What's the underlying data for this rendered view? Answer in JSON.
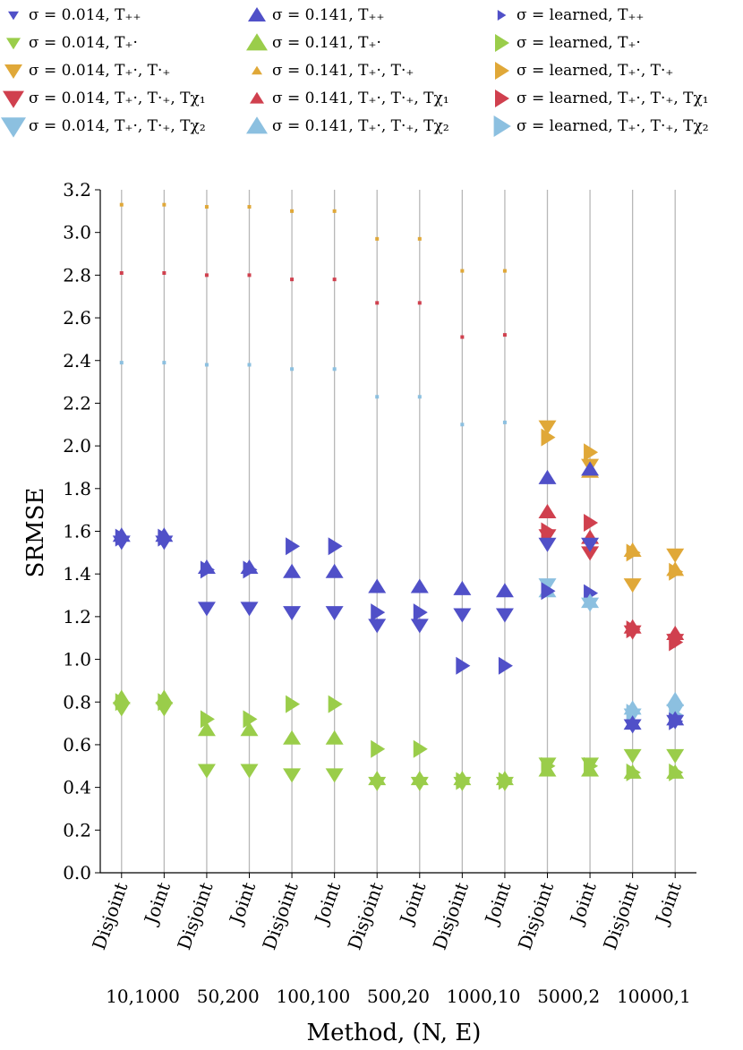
{
  "legend": [
    {
      "label": "σ = 0.014, T₊₊",
      "color": "#5050c8",
      "shape": "down",
      "size": "xs"
    },
    {
      "label": "σ = 0.014, T₊·",
      "color": "#9acd4a",
      "shape": "down",
      "size": "s"
    },
    {
      "label": "σ = 0.014, T₊·, T·₊",
      "color": "#e0a838",
      "shape": "down",
      "size": "m"
    },
    {
      "label": "σ = 0.014, T₊·, T·₊, Tχ₁",
      "color": "#d0404e",
      "shape": "down",
      "size": "l"
    },
    {
      "label": "σ = 0.014, T₊·, T·₊, Tχ₂",
      "color": "#8cc0e0",
      "shape": "down",
      "size": "xl"
    },
    {
      "label": "σ = 0.141, T₊₊",
      "color": "#5050c8",
      "shape": "up",
      "size": "m"
    },
    {
      "label": "σ = 0.141, T₊·",
      "color": "#9acd4a",
      "shape": "up",
      "size": "l"
    },
    {
      "label": "σ = 0.141, T₊·, T·₊",
      "color": "#e0a838",
      "shape": "up",
      "size": "xs"
    },
    {
      "label": "σ = 0.141, T₊·, T·₊, Tχ₁",
      "color": "#d0404e",
      "shape": "up",
      "size": "s"
    },
    {
      "label": "σ = 0.141, T₊·, T·₊, Tχ₂",
      "color": "#8cc0e0",
      "shape": "up",
      "size": "l"
    },
    {
      "label": "σ = learned, T₊₊",
      "color": "#5050c8",
      "shape": "right",
      "size": "xs"
    },
    {
      "label": "σ = learned, T₊·",
      "color": "#9acd4a",
      "shape": "right",
      "size": "m"
    },
    {
      "label": "σ = learned, T₊·, T·₊",
      "color": "#e0a838",
      "shape": "right",
      "size": "m"
    },
    {
      "label": "σ = learned, T₊·, T·₊, Tχ₁",
      "color": "#d0404e",
      "shape": "right",
      "size": "m"
    },
    {
      "label": "σ = learned, T₊·, T·₊, Tχ₂",
      "color": "#8cc0e0",
      "shape": "right",
      "size": "l"
    }
  ],
  "chart_data": {
    "type": "scatter",
    "ylabel": "SRMSE",
    "xlabel": "Method, (N, E)",
    "ylim": [
      0.0,
      3.2
    ],
    "yticks": [
      "0.0",
      "0.2",
      "0.4",
      "0.6",
      "0.8",
      "1.0",
      "1.2",
      "1.4",
      "1.6",
      "1.8",
      "2.0",
      "2.2",
      "2.4",
      "2.6",
      "2.8",
      "3.0",
      "3.2"
    ],
    "categories": [
      "Disjoint",
      "Joint",
      "Disjoint",
      "Joint",
      "Disjoint",
      "Joint",
      "Disjoint",
      "Joint",
      "Disjoint",
      "Joint",
      "Disjoint",
      "Joint",
      "Disjoint",
      "Joint"
    ],
    "groups": [
      "10,1000",
      "50,200",
      "100,100",
      "500,20",
      "1000,10",
      "5000,2",
      "10000,1"
    ],
    "colors": {
      "blue": "#5050c8",
      "green": "#9acd4a",
      "orange": "#e0a838",
      "red": "#d0404e",
      "lightblue": "#8cc0e0"
    },
    "points": [
      {
        "i": 0,
        "y": 3.13,
        "c": "orange",
        "shape": "dot"
      },
      {
        "i": 0,
        "y": 2.81,
        "c": "red",
        "shape": "dot"
      },
      {
        "i": 0,
        "y": 2.39,
        "c": "lightblue",
        "shape": "dot"
      },
      {
        "i": 0,
        "y": 1.55,
        "c": "blue",
        "shape": "down"
      },
      {
        "i": 0,
        "y": 1.58,
        "c": "blue",
        "shape": "up"
      },
      {
        "i": 0,
        "y": 1.57,
        "c": "blue",
        "shape": "right"
      },
      {
        "i": 0,
        "y": 0.77,
        "c": "green",
        "shape": "down"
      },
      {
        "i": 0,
        "y": 0.82,
        "c": "green",
        "shape": "up"
      },
      {
        "i": 0,
        "y": 0.8,
        "c": "green",
        "shape": "right"
      },
      {
        "i": 1,
        "y": 3.13,
        "c": "orange",
        "shape": "dot"
      },
      {
        "i": 1,
        "y": 2.81,
        "c": "red",
        "shape": "dot"
      },
      {
        "i": 1,
        "y": 2.39,
        "c": "lightblue",
        "shape": "dot"
      },
      {
        "i": 1,
        "y": 1.55,
        "c": "blue",
        "shape": "down"
      },
      {
        "i": 1,
        "y": 1.58,
        "c": "blue",
        "shape": "up"
      },
      {
        "i": 1,
        "y": 1.57,
        "c": "blue",
        "shape": "right"
      },
      {
        "i": 1,
        "y": 0.77,
        "c": "green",
        "shape": "down"
      },
      {
        "i": 1,
        "y": 0.82,
        "c": "green",
        "shape": "up"
      },
      {
        "i": 1,
        "y": 0.8,
        "c": "green",
        "shape": "right"
      },
      {
        "i": 2,
        "y": 3.12,
        "c": "orange",
        "shape": "dot"
      },
      {
        "i": 2,
        "y": 2.8,
        "c": "red",
        "shape": "dot"
      },
      {
        "i": 2,
        "y": 2.38,
        "c": "lightblue",
        "shape": "dot"
      },
      {
        "i": 2,
        "y": 1.24,
        "c": "blue",
        "shape": "down"
      },
      {
        "i": 2,
        "y": 1.43,
        "c": "blue",
        "shape": "up"
      },
      {
        "i": 2,
        "y": 1.42,
        "c": "blue",
        "shape": "right"
      },
      {
        "i": 2,
        "y": 0.48,
        "c": "green",
        "shape": "down"
      },
      {
        "i": 2,
        "y": 0.67,
        "c": "green",
        "shape": "up"
      },
      {
        "i": 2,
        "y": 0.72,
        "c": "green",
        "shape": "right"
      },
      {
        "i": 3,
        "y": 3.12,
        "c": "orange",
        "shape": "dot"
      },
      {
        "i": 3,
        "y": 2.8,
        "c": "red",
        "shape": "dot"
      },
      {
        "i": 3,
        "y": 2.38,
        "c": "lightblue",
        "shape": "dot"
      },
      {
        "i": 3,
        "y": 1.24,
        "c": "blue",
        "shape": "down"
      },
      {
        "i": 3,
        "y": 1.43,
        "c": "blue",
        "shape": "up"
      },
      {
        "i": 3,
        "y": 1.42,
        "c": "blue",
        "shape": "right"
      },
      {
        "i": 3,
        "y": 0.48,
        "c": "green",
        "shape": "down"
      },
      {
        "i": 3,
        "y": 0.67,
        "c": "green",
        "shape": "up"
      },
      {
        "i": 3,
        "y": 0.72,
        "c": "green",
        "shape": "right"
      },
      {
        "i": 4,
        "y": 3.1,
        "c": "orange",
        "shape": "dot"
      },
      {
        "i": 4,
        "y": 2.78,
        "c": "red",
        "shape": "dot"
      },
      {
        "i": 4,
        "y": 2.36,
        "c": "lightblue",
        "shape": "dot"
      },
      {
        "i": 4,
        "y": 1.22,
        "c": "blue",
        "shape": "down"
      },
      {
        "i": 4,
        "y": 1.41,
        "c": "blue",
        "shape": "up"
      },
      {
        "i": 4,
        "y": 1.53,
        "c": "blue",
        "shape": "right"
      },
      {
        "i": 4,
        "y": 0.46,
        "c": "green",
        "shape": "down"
      },
      {
        "i": 4,
        "y": 0.63,
        "c": "green",
        "shape": "up"
      },
      {
        "i": 4,
        "y": 0.79,
        "c": "green",
        "shape": "right"
      },
      {
        "i": 5,
        "y": 3.1,
        "c": "orange",
        "shape": "dot"
      },
      {
        "i": 5,
        "y": 2.78,
        "c": "red",
        "shape": "dot"
      },
      {
        "i": 5,
        "y": 2.36,
        "c": "lightblue",
        "shape": "dot"
      },
      {
        "i": 5,
        "y": 1.22,
        "c": "blue",
        "shape": "down"
      },
      {
        "i": 5,
        "y": 1.41,
        "c": "blue",
        "shape": "up"
      },
      {
        "i": 5,
        "y": 1.53,
        "c": "blue",
        "shape": "right"
      },
      {
        "i": 5,
        "y": 0.46,
        "c": "green",
        "shape": "down"
      },
      {
        "i": 5,
        "y": 0.63,
        "c": "green",
        "shape": "up"
      },
      {
        "i": 5,
        "y": 0.79,
        "c": "green",
        "shape": "right"
      },
      {
        "i": 6,
        "y": 2.97,
        "c": "orange",
        "shape": "dot"
      },
      {
        "i": 6,
        "y": 2.67,
        "c": "red",
        "shape": "dot"
      },
      {
        "i": 6,
        "y": 2.23,
        "c": "lightblue",
        "shape": "dot"
      },
      {
        "i": 6,
        "y": 1.16,
        "c": "blue",
        "shape": "down"
      },
      {
        "i": 6,
        "y": 1.34,
        "c": "blue",
        "shape": "up"
      },
      {
        "i": 6,
        "y": 1.22,
        "c": "blue",
        "shape": "right"
      },
      {
        "i": 6,
        "y": 0.42,
        "c": "green",
        "shape": "down"
      },
      {
        "i": 6,
        "y": 0.44,
        "c": "green",
        "shape": "up"
      },
      {
        "i": 6,
        "y": 0.58,
        "c": "green",
        "shape": "right"
      },
      {
        "i": 7,
        "y": 2.97,
        "c": "orange",
        "shape": "dot"
      },
      {
        "i": 7,
        "y": 2.67,
        "c": "red",
        "shape": "dot"
      },
      {
        "i": 7,
        "y": 2.23,
        "c": "lightblue",
        "shape": "dot"
      },
      {
        "i": 7,
        "y": 1.16,
        "c": "blue",
        "shape": "down"
      },
      {
        "i": 7,
        "y": 1.34,
        "c": "blue",
        "shape": "up"
      },
      {
        "i": 7,
        "y": 1.22,
        "c": "blue",
        "shape": "right"
      },
      {
        "i": 7,
        "y": 0.42,
        "c": "green",
        "shape": "down"
      },
      {
        "i": 7,
        "y": 0.44,
        "c": "green",
        "shape": "up"
      },
      {
        "i": 7,
        "y": 0.58,
        "c": "green",
        "shape": "right"
      },
      {
        "i": 8,
        "y": 2.82,
        "c": "orange",
        "shape": "dot"
      },
      {
        "i": 8,
        "y": 2.51,
        "c": "red",
        "shape": "dot"
      },
      {
        "i": 8,
        "y": 2.1,
        "c": "lightblue",
        "shape": "dot"
      },
      {
        "i": 8,
        "y": 1.21,
        "c": "blue",
        "shape": "down"
      },
      {
        "i": 8,
        "y": 1.33,
        "c": "blue",
        "shape": "up"
      },
      {
        "i": 8,
        "y": 0.97,
        "c": "blue",
        "shape": "right"
      },
      {
        "i": 8,
        "y": 0.42,
        "c": "green",
        "shape": "down"
      },
      {
        "i": 8,
        "y": 0.44,
        "c": "green",
        "shape": "up"
      },
      {
        "i": 8,
        "y": 0.43,
        "c": "green",
        "shape": "right"
      },
      {
        "i": 9,
        "y": 2.82,
        "c": "orange",
        "shape": "dot"
      },
      {
        "i": 9,
        "y": 2.52,
        "c": "red",
        "shape": "dot"
      },
      {
        "i": 9,
        "y": 2.11,
        "c": "lightblue",
        "shape": "dot"
      },
      {
        "i": 9,
        "y": 1.21,
        "c": "blue",
        "shape": "down"
      },
      {
        "i": 9,
        "y": 1.32,
        "c": "blue",
        "shape": "up"
      },
      {
        "i": 9,
        "y": 0.97,
        "c": "blue",
        "shape": "right"
      },
      {
        "i": 9,
        "y": 0.42,
        "c": "green",
        "shape": "down"
      },
      {
        "i": 9,
        "y": 0.44,
        "c": "green",
        "shape": "up"
      },
      {
        "i": 9,
        "y": 0.43,
        "c": "green",
        "shape": "right"
      },
      {
        "i": 10,
        "y": 2.09,
        "c": "orange",
        "shape": "down"
      },
      {
        "i": 10,
        "y": 2.04,
        "c": "orange",
        "shape": "right"
      },
      {
        "i": 10,
        "y": 1.85,
        "c": "blue",
        "shape": "up"
      },
      {
        "i": 10,
        "y": 1.69,
        "c": "red",
        "shape": "up"
      },
      {
        "i": 10,
        "y": 1.58,
        "c": "red",
        "shape": "down"
      },
      {
        "i": 10,
        "y": 1.6,
        "c": "red",
        "shape": "right"
      },
      {
        "i": 10,
        "y": 1.54,
        "c": "blue",
        "shape": "down"
      },
      {
        "i": 10,
        "y": 1.35,
        "c": "lightblue",
        "shape": "down"
      },
      {
        "i": 10,
        "y": 1.32,
        "c": "lightblue",
        "shape": "up"
      },
      {
        "i": 10,
        "y": 1.32,
        "c": "blue",
        "shape": "right"
      },
      {
        "i": 10,
        "y": 0.51,
        "c": "green",
        "shape": "down"
      },
      {
        "i": 10,
        "y": 0.48,
        "c": "green",
        "shape": "up"
      },
      {
        "i": 10,
        "y": 0.5,
        "c": "green",
        "shape": "right"
      },
      {
        "i": 11,
        "y": 1.97,
        "c": "orange",
        "shape": "right"
      },
      {
        "i": 11,
        "y": 1.91,
        "c": "orange",
        "shape": "down"
      },
      {
        "i": 11,
        "y": 1.88,
        "c": "orange",
        "shape": "up"
      },
      {
        "i": 11,
        "y": 1.89,
        "c": "blue",
        "shape": "up"
      },
      {
        "i": 11,
        "y": 1.64,
        "c": "red",
        "shape": "right"
      },
      {
        "i": 11,
        "y": 1.57,
        "c": "red",
        "shape": "up"
      },
      {
        "i": 11,
        "y": 1.5,
        "c": "red",
        "shape": "down"
      },
      {
        "i": 11,
        "y": 1.54,
        "c": "blue",
        "shape": "down"
      },
      {
        "i": 11,
        "y": 1.31,
        "c": "blue",
        "shape": "right"
      },
      {
        "i": 11,
        "y": 1.27,
        "c": "lightblue",
        "shape": "up"
      },
      {
        "i": 11,
        "y": 1.26,
        "c": "lightblue",
        "shape": "down"
      },
      {
        "i": 11,
        "y": 0.51,
        "c": "green",
        "shape": "down"
      },
      {
        "i": 11,
        "y": 0.48,
        "c": "green",
        "shape": "up"
      },
      {
        "i": 11,
        "y": 0.5,
        "c": "green",
        "shape": "right"
      },
      {
        "i": 12,
        "y": 1.51,
        "c": "orange",
        "shape": "up"
      },
      {
        "i": 12,
        "y": 1.5,
        "c": "orange",
        "shape": "right"
      },
      {
        "i": 12,
        "y": 1.35,
        "c": "orange",
        "shape": "down"
      },
      {
        "i": 12,
        "y": 1.15,
        "c": "red",
        "shape": "up"
      },
      {
        "i": 12,
        "y": 1.14,
        "c": "red",
        "shape": "right"
      },
      {
        "i": 12,
        "y": 1.13,
        "c": "red",
        "shape": "down"
      },
      {
        "i": 12,
        "y": 0.77,
        "c": "lightblue",
        "shape": "up"
      },
      {
        "i": 12,
        "y": 0.74,
        "c": "lightblue",
        "shape": "down"
      },
      {
        "i": 12,
        "y": 0.75,
        "c": "lightblue",
        "shape": "right"
      },
      {
        "i": 12,
        "y": 0.7,
        "c": "blue",
        "shape": "up"
      },
      {
        "i": 12,
        "y": 0.69,
        "c": "blue",
        "shape": "down"
      },
      {
        "i": 12,
        "y": 0.55,
        "c": "green",
        "shape": "down"
      },
      {
        "i": 12,
        "y": 0.47,
        "c": "green",
        "shape": "up"
      },
      {
        "i": 12,
        "y": 0.47,
        "c": "green",
        "shape": "right"
      },
      {
        "i": 13,
        "y": 1.49,
        "c": "orange",
        "shape": "down"
      },
      {
        "i": 13,
        "y": 1.42,
        "c": "orange",
        "shape": "up"
      },
      {
        "i": 13,
        "y": 1.41,
        "c": "orange",
        "shape": "right"
      },
      {
        "i": 13,
        "y": 1.12,
        "c": "red",
        "shape": "up"
      },
      {
        "i": 13,
        "y": 1.09,
        "c": "red",
        "shape": "down"
      },
      {
        "i": 13,
        "y": 1.08,
        "c": "red",
        "shape": "right"
      },
      {
        "i": 13,
        "y": 0.81,
        "c": "lightblue",
        "shape": "up"
      },
      {
        "i": 13,
        "y": 0.76,
        "c": "lightblue",
        "shape": "down"
      },
      {
        "i": 13,
        "y": 0.74,
        "c": "lightblue",
        "shape": "right"
      },
      {
        "i": 13,
        "y": 0.72,
        "c": "blue",
        "shape": "up"
      },
      {
        "i": 13,
        "y": 0.71,
        "c": "blue",
        "shape": "down"
      },
      {
        "i": 13,
        "y": 0.71,
        "c": "blue",
        "shape": "right"
      },
      {
        "i": 13,
        "y": 0.55,
        "c": "green",
        "shape": "down"
      },
      {
        "i": 13,
        "y": 0.47,
        "c": "green",
        "shape": "up"
      },
      {
        "i": 13,
        "y": 0.47,
        "c": "green",
        "shape": "right"
      }
    ]
  }
}
